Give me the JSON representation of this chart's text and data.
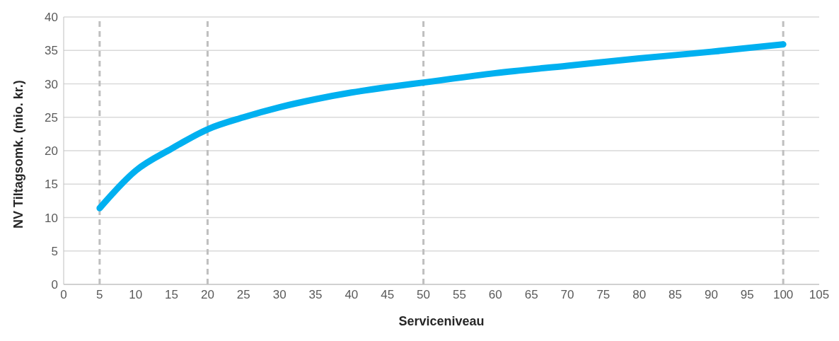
{
  "chart_data": {
    "type": "line",
    "xlabel": "Serviceniveau",
    "ylabel": "NV Tiltagsomk. (mio. kr.)",
    "x": [
      5,
      10,
      15,
      20,
      25,
      30,
      35,
      40,
      45,
      50,
      60,
      70,
      80,
      90,
      100
    ],
    "series": [
      {
        "color": "#00b0f0",
        "values": [
          11.4,
          17,
          20.3,
          23.2,
          25,
          26.5,
          27.7,
          28.7,
          29.5,
          30.2,
          31.6,
          32.7,
          33.8,
          34.8,
          35.9
        ]
      }
    ],
    "xlim": [
      0,
      105
    ],
    "xticks": [
      0,
      5,
      10,
      15,
      20,
      25,
      30,
      35,
      40,
      45,
      50,
      55,
      60,
      65,
      70,
      75,
      80,
      85,
      90,
      95,
      100,
      105
    ],
    "ylim": [
      0,
      40
    ],
    "yticks": [
      0,
      5,
      10,
      15,
      20,
      25,
      30,
      35,
      40
    ],
    "grid": "y",
    "marker": "none",
    "line_style": "solid",
    "legend": false,
    "ref_lines": [
      {
        "axis": "x",
        "value": 5,
        "color": "#bfbfbf",
        "line_style": "dashed"
      },
      {
        "axis": "x",
        "value": 20,
        "color": "#bfbfbf",
        "line_style": "dashed"
      },
      {
        "axis": "x",
        "value": 50,
        "color": "#bfbfbf",
        "line_style": "dashed"
      },
      {
        "axis": "x",
        "value": 100,
        "color": "#bfbfbf",
        "line_style": "dashed"
      }
    ]
  }
}
